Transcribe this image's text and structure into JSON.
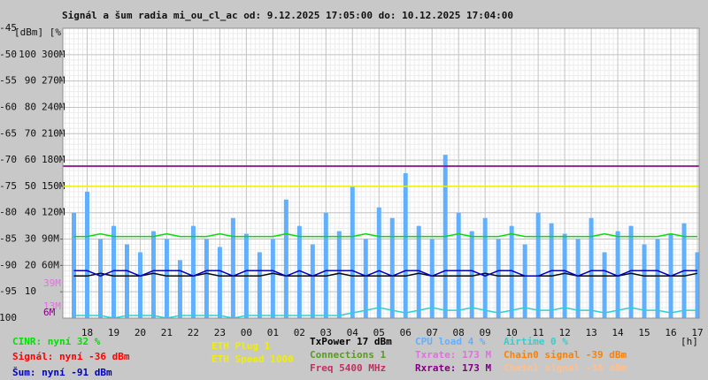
{
  "chart_data": {
    "type": "line",
    "title": "Signál a šum radia mi_ou_cl_ac od: 9.12.2025 17:05:00 do: 10.12.2025 17:04:00",
    "y_axis_header": "[dBm] [%]",
    "x_unit": "[h]",
    "xlim": [
      17.083,
      41.067
    ],
    "xticks": [
      {
        "value": 18,
        "label": "18"
      },
      {
        "value": 19,
        "label": "19"
      },
      {
        "value": 20,
        "label": "20"
      },
      {
        "value": 21,
        "label": "21"
      },
      {
        "value": 22,
        "label": "22"
      },
      {
        "value": 23,
        "label": "23"
      },
      {
        "value": 24,
        "label": "00"
      },
      {
        "value": 25,
        "label": "01"
      },
      {
        "value": 26,
        "label": "02"
      },
      {
        "value": 27,
        "label": "03"
      },
      {
        "value": 28,
        "label": "04"
      },
      {
        "value": 29,
        "label": "05"
      },
      {
        "value": 30,
        "label": "06"
      },
      {
        "value": 31,
        "label": "07"
      },
      {
        "value": 32,
        "label": "08"
      },
      {
        "value": 33,
        "label": "09"
      },
      {
        "value": 34,
        "label": "10"
      },
      {
        "value": 35,
        "label": "11"
      },
      {
        "value": 36,
        "label": "12"
      },
      {
        "value": 37,
        "label": "13"
      },
      {
        "value": 38,
        "label": "14"
      },
      {
        "value": 39,
        "label": "15"
      },
      {
        "value": 40,
        "label": "16"
      },
      {
        "value": 41,
        "label": "17"
      }
    ],
    "ylim": [
      -100,
      -45
    ],
    "yticks": [
      -45,
      -50,
      -55,
      -60,
      -65,
      -70,
      -75,
      -80,
      -85,
      -90,
      -95,
      -100
    ],
    "y2lim": [
      0,
      110
    ],
    "y2ticks": [
      10,
      20,
      30,
      40,
      50,
      60,
      70,
      80,
      90,
      100
    ],
    "y3lim": [
      0,
      330
    ],
    "y3ticks": [
      {
        "value": 60,
        "label": "60M"
      },
      {
        "value": 90,
        "label": "90M"
      },
      {
        "value": 120,
        "label": "120M"
      },
      {
        "value": 150,
        "label": "150M"
      },
      {
        "value": 180,
        "label": "180M"
      },
      {
        "value": 210,
        "label": "210M"
      },
      {
        "value": 240,
        "label": "240M"
      },
      {
        "value": 270,
        "label": "270M"
      },
      {
        "value": 300,
        "label": "300M"
      }
    ],
    "markers": [
      {
        "value": 39,
        "label": "39M",
        "color": "#e070e0"
      },
      {
        "value": 13,
        "label": "13M",
        "color": "#e070e0"
      },
      {
        "value": 6,
        "label": "6M",
        "color": "#800080"
      }
    ],
    "grid": true,
    "legend": [
      {
        "label": "CINR: nyní 32 %",
        "color": "#00e000"
      },
      {
        "label": "Signál: nyní -36 dBm",
        "color": "#ff0000"
      },
      {
        "label": "Šum: nyní -91 dBm",
        "color": "#0000c0"
      },
      {
        "label": "ETH Plug 1",
        "color": "#f0f000"
      },
      {
        "label": "ETH Speed 1000",
        "color": "#f0f000"
      },
      {
        "label": "TxPower 17 dBm",
        "color": "#000000"
      },
      {
        "label": "Connections 1",
        "color": "#5a9a20"
      },
      {
        "label": "Freq 5400 MHz",
        "color": "#c03060"
      },
      {
        "label": "CPU load 4 %",
        "color": "#60b0ff"
      },
      {
        "label": "Txrate: 173 M",
        "color": "#e070e0"
      },
      {
        "label": "Rxrate: 173 M",
        "color": "#800080"
      },
      {
        "label": "Airtime 0 %",
        "color": "#30d0d0"
      },
      {
        "label": "Chain0 signal -39 dBm",
        "color": "#ff8000"
      },
      {
        "label": "Chain1 signal -38 dBm",
        "color": "#ffc090"
      }
    ],
    "x": [
      17.5,
      18,
      18.5,
      19,
      19.5,
      20,
      20.5,
      21,
      21.5,
      22,
      22.5,
      23,
      23.5,
      24,
      24.5,
      25,
      25.5,
      26,
      26.5,
      27,
      27.5,
      28,
      28.5,
      29,
      29.5,
      30,
      30.5,
      31,
      31.5,
      32,
      32.5,
      33,
      33.5,
      34,
      34.5,
      35,
      35.5,
      36,
      36.5,
      37,
      37.5,
      38,
      38.5,
      39,
      39.5,
      40,
      40.5,
      41
    ],
    "series": [
      {
        "legend": 8,
        "axis": "y2",
        "style": "bar",
        "values": [
          40,
          48,
          30,
          35,
          28,
          25,
          33,
          30,
          22,
          35,
          30,
          27,
          38,
          32,
          25,
          30,
          45,
          35,
          28,
          40,
          33,
          50,
          30,
          42,
          38,
          55,
          35,
          30,
          62,
          40,
          33,
          38,
          30,
          35,
          28,
          40,
          36,
          32,
          30,
          38,
          25,
          33,
          35,
          28,
          30,
          32,
          36,
          25
        ]
      },
      {
        "legend": 11,
        "axis": "y2",
        "style": "line",
        "values": [
          1,
          1,
          1,
          0,
          1,
          1,
          1,
          0,
          1,
          1,
          1,
          1,
          0,
          1,
          1,
          1,
          1,
          1,
          1,
          1,
          1,
          2,
          3,
          4,
          3,
          2,
          3,
          4,
          3,
          3,
          4,
          3,
          2,
          3,
          4,
          3,
          3,
          4,
          3,
          3,
          2,
          3,
          4,
          3,
          3,
          2,
          3,
          3
        ]
      },
      {
        "legend": 4,
        "axis": "y3",
        "style": "line",
        "x": [
          17.083,
          41.067
        ],
        "values": [
          150,
          150
        ]
      },
      {
        "legend": 9,
        "axis": "y3",
        "style": "line",
        "x": [
          17.083,
          41.067
        ],
        "values": [
          173,
          173
        ]
      },
      {
        "legend": 10,
        "axis": "y3",
        "style": "line",
        "x": [
          17.083,
          41.067
        ],
        "values": [
          173,
          173
        ]
      },
      {
        "legend": 0,
        "axis": "y2",
        "style": "line",
        "values": [
          31,
          31,
          32,
          31,
          31,
          31,
          31,
          32,
          31,
          31,
          31,
          32,
          31,
          31,
          31,
          31,
          32,
          31,
          31,
          31,
          31,
          31,
          32,
          31,
          31,
          31,
          31,
          31,
          31,
          32,
          31,
          31,
          31,
          32,
          31,
          31,
          31,
          31,
          31,
          31,
          32,
          31,
          31,
          31,
          31,
          32,
          31,
          31
        ]
      },
      {
        "legend": 5,
        "axis": "y2",
        "style": "line",
        "values": [
          16,
          16,
          17,
          16,
          16,
          16,
          17,
          16,
          16,
          16,
          17,
          16,
          16,
          16,
          16,
          17,
          16,
          16,
          16,
          16,
          17,
          16,
          16,
          16,
          16,
          16,
          17,
          16,
          16,
          16,
          16,
          17,
          16,
          16,
          16,
          16,
          16,
          17,
          16,
          16,
          16,
          16,
          17,
          16,
          16,
          16,
          16,
          17
        ]
      },
      {
        "legend": 2,
        "axis": "y",
        "style": "line",
        "values": [
          -91,
          -91,
          -92,
          -91,
          -91,
          -92,
          -91,
          -91,
          -91,
          -92,
          -91,
          -91,
          -92,
          -91,
          -91,
          -91,
          -92,
          -91,
          -92,
          -91,
          -91,
          -91,
          -92,
          -91,
          -92,
          -91,
          -91,
          -92,
          -91,
          -91,
          -91,
          -92,
          -91,
          -91,
          -92,
          -92,
          -91,
          -91,
          -92,
          -91,
          -91,
          -92,
          -91,
          -91,
          -91,
          -92,
          -91,
          -91
        ]
      }
    ]
  }
}
